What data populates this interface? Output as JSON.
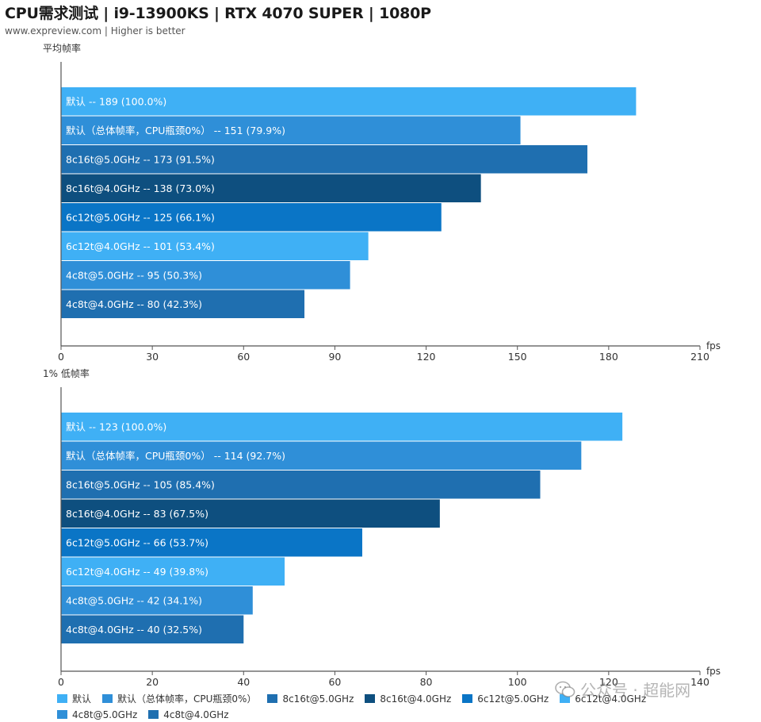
{
  "header": {
    "title": "CPU需求测试 | i9-13900KS | RTX 4070 SUPER | 1080P",
    "subtitle": "www.expreview.com | Higher is better"
  },
  "colors": [
    "#3fb0f5",
    "#2f8fd8",
    "#1f6fb0",
    "#0e4f7f",
    "#0a75c6",
    "#3fb0f5",
    "#2f8fd8",
    "#1f6fb0"
  ],
  "legend": [
    "默认",
    "默认（总体帧率，CPU瓶颈0%）",
    "8c16t@5.0GHz",
    "8c16t@4.0GHz",
    "6c12t@5.0GHz",
    "6c12t@4.0GHz",
    "4c8t@5.0GHz",
    "4c8t@4.0GHz"
  ],
  "watermark": "公众号 · 超能网",
  "chart_data": [
    {
      "type": "bar",
      "orientation": "horizontal",
      "title": "CPU需求测试 | i9-13900KS | RTX 4070 SUPER | 1080P",
      "ylabel": "平均帧率",
      "xlabel": "fps",
      "xlim": [
        0,
        210
      ],
      "xticks": [
        "0",
        "30",
        "60",
        "90",
        "120",
        "150",
        "180",
        "210"
      ],
      "categories": [
        "默认",
        "默认（总体帧率，CPU瓶颈0%）",
        "8c16t@5.0GHz",
        "8c16t@4.0GHz",
        "6c12t@5.0GHz",
        "6c12t@4.0GHz",
        "4c8t@5.0GHz",
        "4c8t@4.0GHz"
      ],
      "values": [
        189,
        151,
        173,
        138,
        125,
        101,
        95,
        80
      ],
      "labels": [
        "默认  --  189 (100.0%)",
        "默认（总体帧率，CPU瓶颈0%）  --  151 (79.9%)",
        "8c16t@5.0GHz  --  173 (91.5%)",
        "8c16t@4.0GHz  --  138 (73.0%)",
        "6c12t@5.0GHz  --  125 (66.1%)",
        "6c12t@4.0GHz  --  101 (53.4%)",
        "4c8t@5.0GHz  --  95 (50.3%)",
        "4c8t@4.0GHz  --  80 (42.3%)"
      ]
    },
    {
      "type": "bar",
      "orientation": "horizontal",
      "ylabel": "1% 低帧率",
      "xlabel": "fps",
      "xlim": [
        0,
        140
      ],
      "xticks": [
        "0",
        "20",
        "40",
        "60",
        "80",
        "100",
        "120",
        "140"
      ],
      "categories": [
        "默认",
        "默认（总体帧率，CPU瓶颈0%）",
        "8c16t@5.0GHz",
        "8c16t@4.0GHz",
        "6c12t@5.0GHz",
        "6c12t@4.0GHz",
        "4c8t@5.0GHz",
        "4c8t@4.0GHz"
      ],
      "values": [
        123,
        114,
        105,
        83,
        66,
        49,
        42,
        40
      ],
      "labels": [
        "默认  --  123 (100.0%)",
        "默认（总体帧率，CPU瓶颈0%）  --  114 (92.7%)",
        "8c16t@5.0GHz  --  105 (85.4%)",
        "8c16t@4.0GHz  --  83 (67.5%)",
        "6c12t@5.0GHz  --  66 (53.7%)",
        "6c12t@4.0GHz  --  49 (39.8%)",
        "4c8t@5.0GHz  --  42 (34.1%)",
        "4c8t@4.0GHz  --  40 (32.5%)"
      ]
    }
  ]
}
